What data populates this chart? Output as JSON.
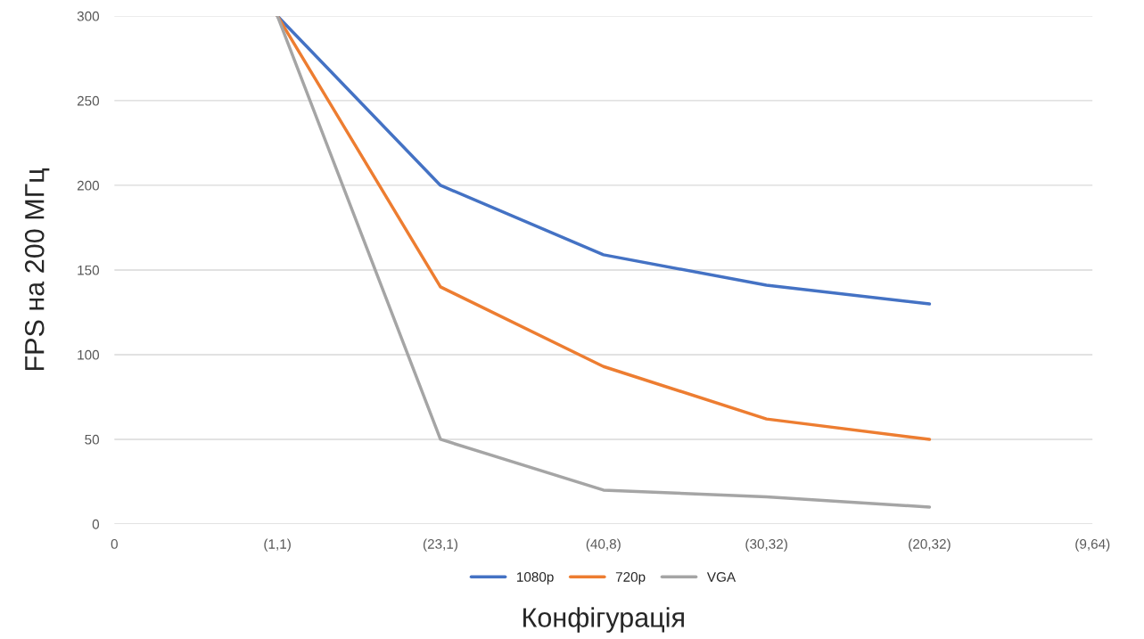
{
  "chart_data": {
    "type": "line",
    "xlabel": "Конфігурація",
    "ylabel": "FPS на 200 МГц",
    "categories": [
      "0",
      "(1,1)",
      "(23,1)",
      "(40,8)",
      "(30,32)",
      "(20,32)",
      "(9,64)"
    ],
    "series": [
      {
        "name": "1080p",
        "color": "#4472c4",
        "values": [
          null,
          300,
          200,
          159,
          141,
          130,
          null
        ]
      },
      {
        "name": "720p",
        "color": "#ed7d31",
        "values": [
          null,
          300,
          140,
          93,
          62,
          50,
          null
        ]
      },
      {
        "name": "VGA",
        "color": "#a5a5a5",
        "values": [
          null,
          300,
          50,
          20,
          16,
          10,
          null
        ]
      }
    ],
    "ylim": [
      0,
      300
    ],
    "yticks": [
      0,
      50,
      100,
      150,
      200,
      250,
      300
    ],
    "grid": "y",
    "legend": "bottom",
    "marker": "none",
    "line_style": "solid"
  }
}
